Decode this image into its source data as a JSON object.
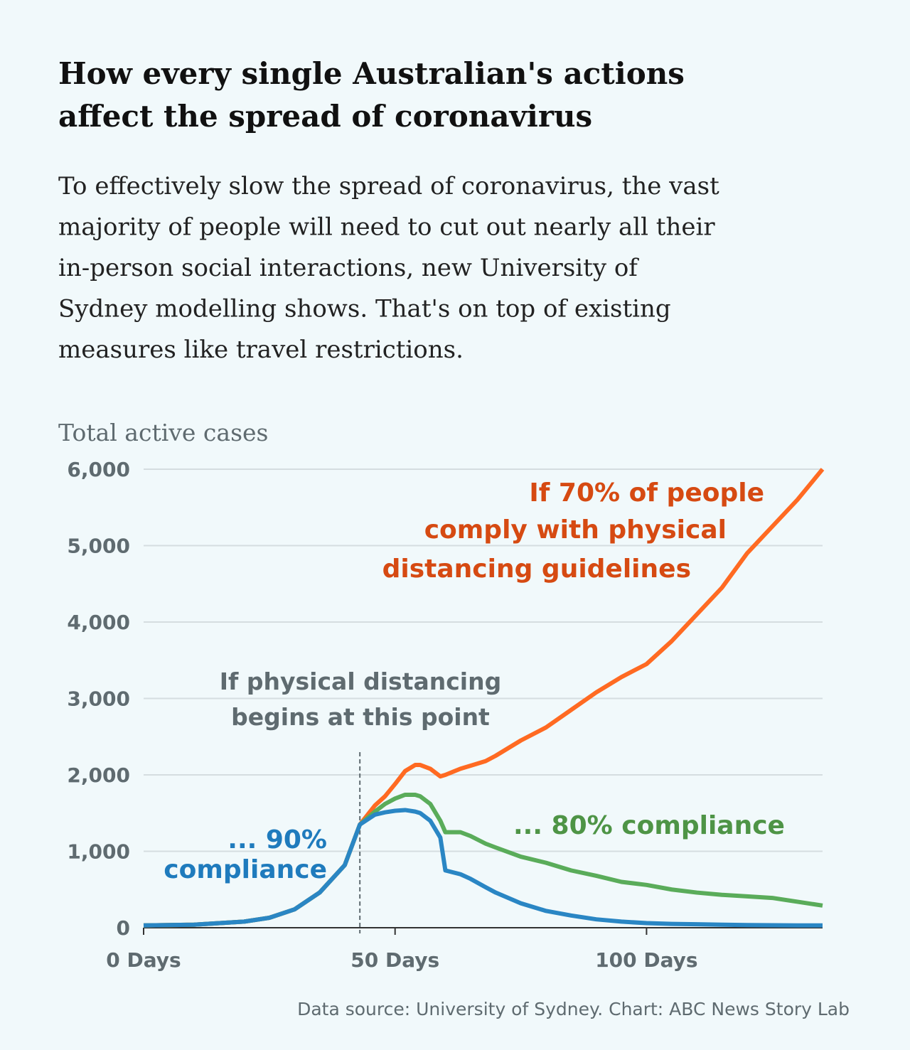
{
  "chart_data": {
    "type": "line",
    "title": [
      "How every single Australian's actions",
      "affect the spread of coronavirus"
    ],
    "subtitle": [
      "To effectively slow the spread of coronavirus, the vast",
      "majority of people will need to cut out nearly all their",
      "in-person social interactions, new University of",
      "Sydney modelling shows. That's on top of existing",
      "measures like travel restrictions."
    ],
    "y_label": "Total active cases",
    "source": "Data source: University of Sydney. Chart: ABC News Story Lab",
    "x": [
      0,
      10,
      20,
      25,
      30,
      35,
      40,
      43,
      46,
      48,
      50,
      52,
      54,
      55,
      57,
      59,
      60,
      63,
      65,
      68,
      70,
      75,
      80,
      85,
      90,
      95,
      100,
      105,
      110,
      115,
      120,
      125,
      130,
      135
    ],
    "series": [
      {
        "name": "70% compliance",
        "color": "#ff6a22",
        "values": [
          30,
          40,
          80,
          130,
          240,
          460,
          820,
          1350,
          1600,
          1720,
          1880,
          2050,
          2130,
          2130,
          2080,
          1980,
          2000,
          2080,
          2120,
          2180,
          2250,
          2450,
          2620,
          2850,
          3080,
          3280,
          3450,
          3750,
          4100,
          4450,
          4900,
          5250,
          5600,
          6000
        ]
      },
      {
        "name": "80% compliance",
        "color": "#5aac5a",
        "values": [
          30,
          40,
          80,
          130,
          240,
          460,
          820,
          1350,
          1520,
          1620,
          1690,
          1740,
          1740,
          1720,
          1620,
          1400,
          1250,
          1250,
          1200,
          1100,
          1050,
          930,
          850,
          750,
          680,
          600,
          560,
          500,
          460,
          430,
          410,
          390,
          340,
          290
        ]
      },
      {
        "name": "90% compliance",
        "color": "#2a86c4",
        "values": [
          30,
          40,
          80,
          130,
          240,
          460,
          820,
          1350,
          1480,
          1510,
          1530,
          1540,
          1520,
          1500,
          1400,
          1180,
          750,
          700,
          640,
          530,
          460,
          320,
          220,
          160,
          110,
          80,
          60,
          50,
          45,
          40,
          35,
          32,
          30,
          30
        ]
      }
    ],
    "xlim": [
      0,
      135
    ],
    "ylim": [
      0,
      6000
    ],
    "xticks": [
      {
        "value": 0,
        "label": "0 Days"
      },
      {
        "value": 50,
        "label": "50 Days"
      },
      {
        "value": 100,
        "label": "100 Days"
      }
    ],
    "yticks": [
      0,
      {
        "value": 1000,
        "label": "1,000"
      },
      {
        "value": 2000,
        "label": "2,000"
      },
      {
        "value": 3000,
        "label": "3,000"
      },
      {
        "value": 4000,
        "label": "4,000"
      },
      {
        "value": 5000,
        "label": "5,000"
      },
      {
        "value": 6000,
        "label": "6,000"
      }
    ],
    "grid": true,
    "annotations": [
      {
        "lines": [
          "If physical distancing",
          "begins at this point"
        ],
        "color": "#5f6b70",
        "x": 43
      },
      {
        "lines": [
          "If 70% of people",
          "comply with physical",
          "distancing guidelines"
        ],
        "color": "#d64a12"
      },
      {
        "lines": [
          "... 80% compliance"
        ],
        "color": "#4e9446"
      },
      {
        "lines": [
          "... 90%",
          "compliance"
        ],
        "color": "#1f7bbd"
      }
    ]
  }
}
